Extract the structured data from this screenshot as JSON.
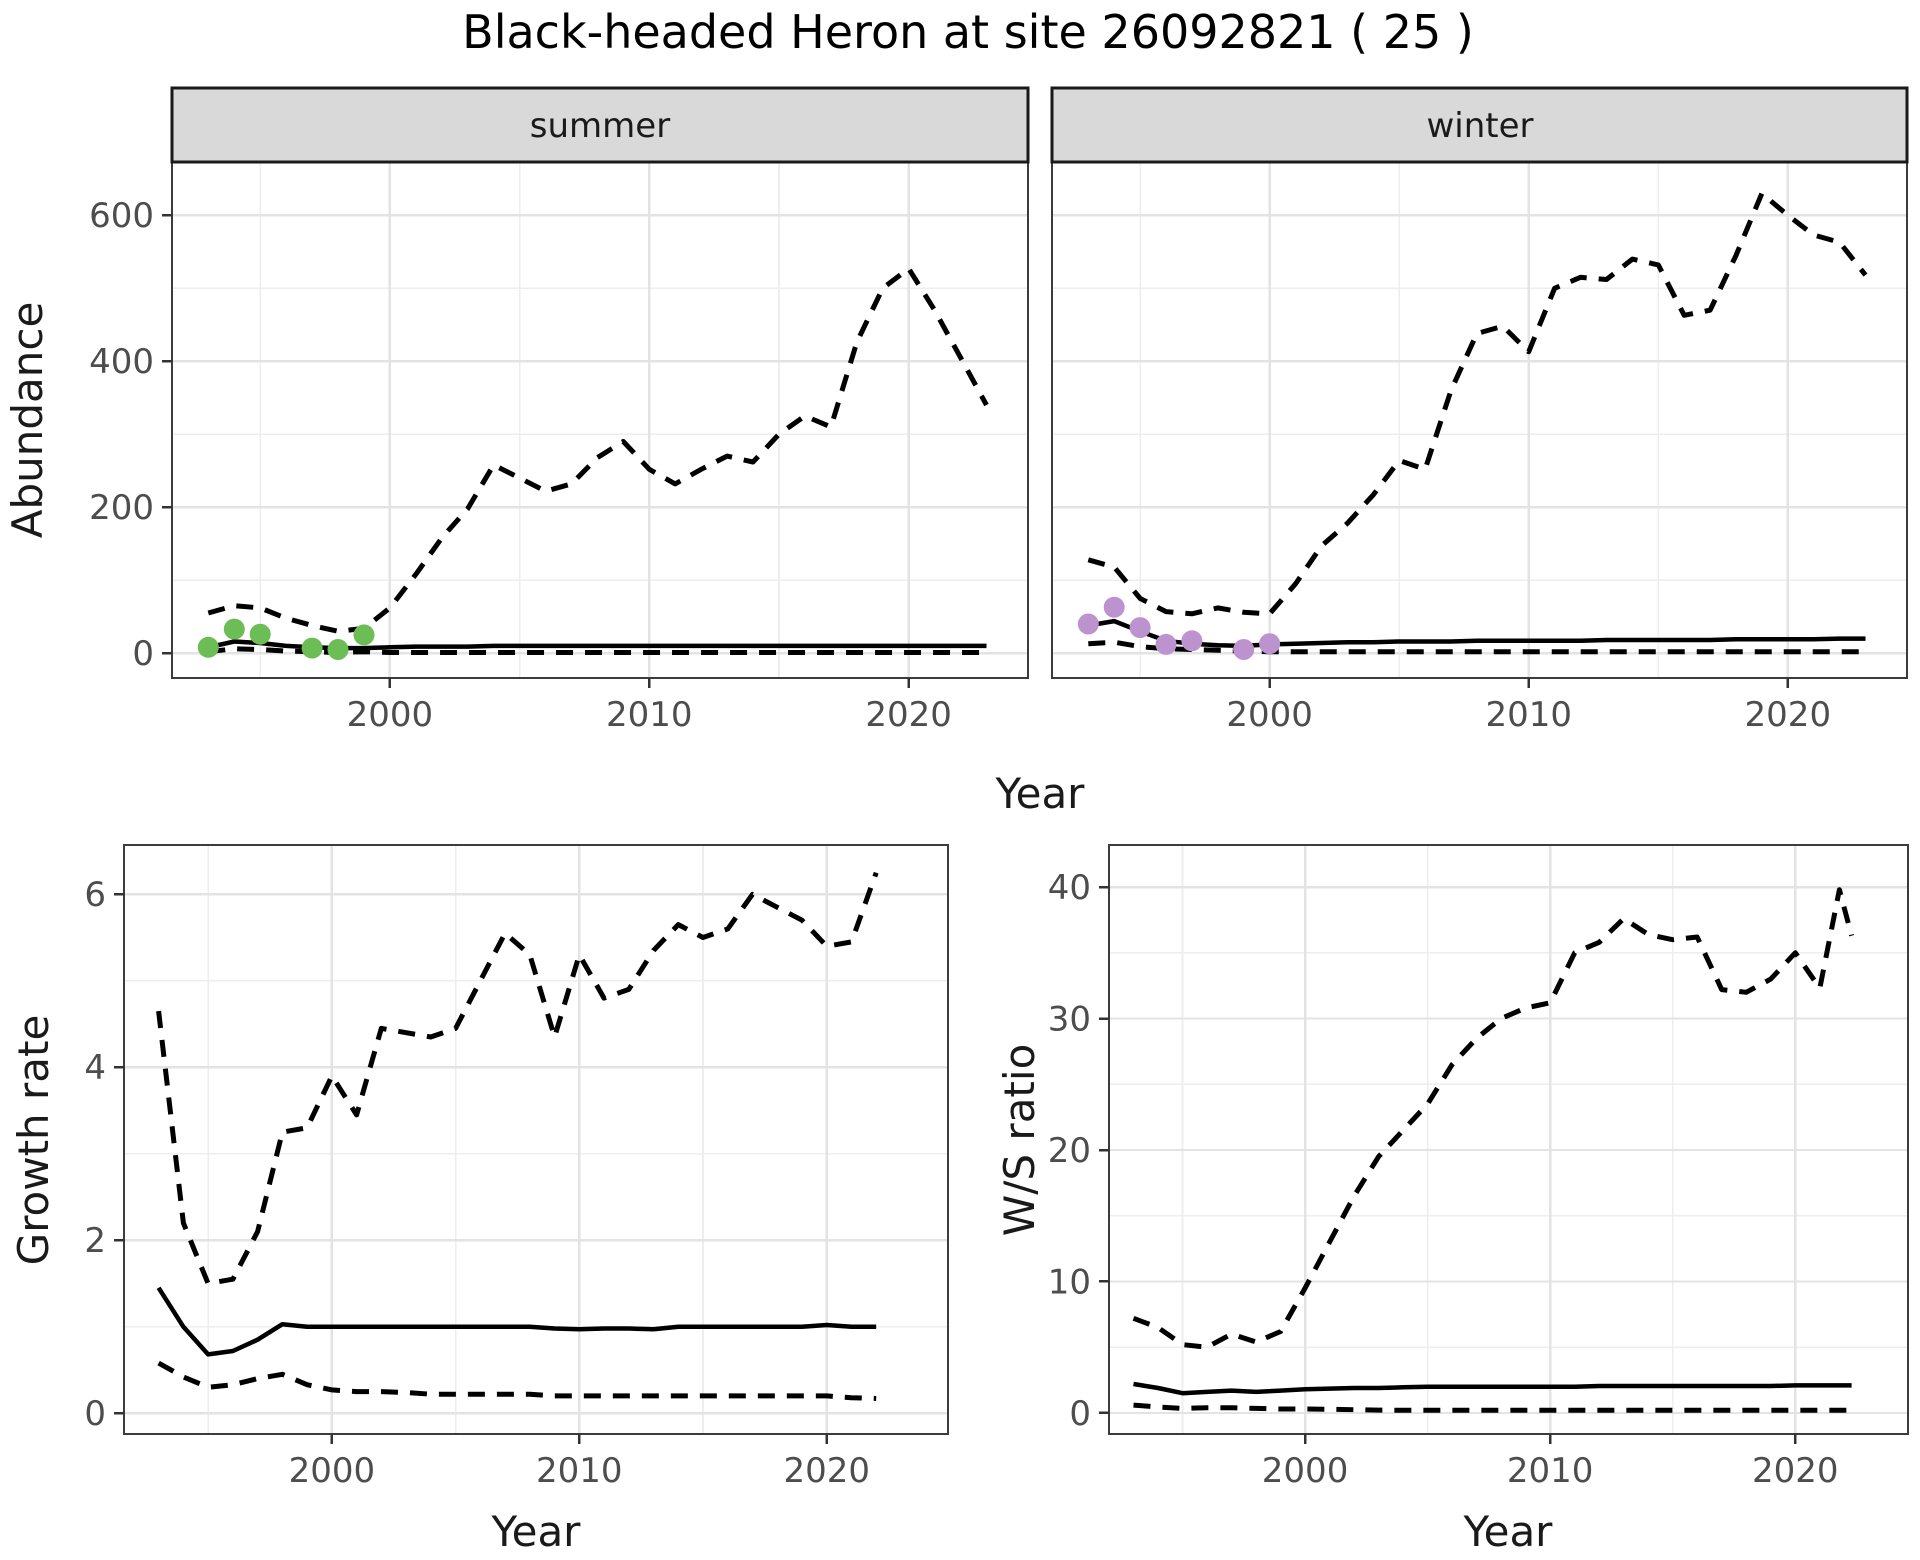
{
  "title": "Black-headed Heron at site 26092821 ( 25 )",
  "colors": {
    "background": "#ffffff",
    "line": "#000000",
    "grid_major": "#e3e3e3",
    "grid_minor": "#eeeeee",
    "strip_bg": "#d9d9d9",
    "strip_border": "#1a1a1a",
    "panel_border": "#3c3c3c",
    "tick_mark": "#333333",
    "tick_label": "#4d4d4d",
    "summer_points": "#6dbd57",
    "winter_points": "#bc93cf"
  },
  "chart_data": [
    {
      "id": "abundance-summer",
      "type": "line",
      "facet": "summer",
      "xlabel": "Year",
      "ylabel": "Abundance",
      "xlim": [
        1991.6,
        2024.6
      ],
      "ylim": [
        -34,
        673
      ],
      "x_breaks": [
        2000,
        2010,
        2020
      ],
      "x_minor": [
        1995,
        2005,
        2015
      ],
      "y_breaks": [
        0,
        200,
        400,
        600
      ],
      "y_minor": [
        100,
        300,
        500
      ],
      "grid": true,
      "legend_position": "none",
      "series": [
        {
          "name": "upper-95ci",
          "style": "dashed",
          "x": [
            1993,
            1994,
            1995,
            1996,
            1997,
            1998,
            1999,
            2000,
            2001,
            2002,
            2003,
            2004,
            2005,
            2006,
            2007,
            2008,
            2009,
            2010,
            2011,
            2012,
            2013,
            2014,
            2015,
            2016,
            2017,
            2018,
            2019,
            2020,
            2021,
            2022,
            2023
          ],
          "y": [
            55,
            65,
            62,
            48,
            38,
            30,
            34,
            62,
            108,
            158,
            198,
            258,
            240,
            222,
            232,
            268,
            290,
            252,
            232,
            252,
            270,
            262,
            300,
            325,
            310,
            426,
            500,
            527,
            470,
            405,
            340
          ]
        },
        {
          "name": "lower-95ci",
          "style": "dashed",
          "x": [
            1993,
            1994,
            1995,
            1996,
            1997,
            1998,
            1999,
            2000,
            2001,
            2002,
            2003,
            2004,
            2005,
            2006,
            2007,
            2008,
            2009,
            2010,
            2011,
            2012,
            2013,
            2014,
            2015,
            2016,
            2017,
            2018,
            2019,
            2020,
            2021,
            2022,
            2023
          ],
          "y": [
            2,
            6,
            5,
            3,
            2,
            1,
            2,
            1,
            1,
            1,
            1,
            1,
            1,
            1,
            1,
            1,
            1,
            1,
            1,
            1,
            1,
            1,
            1,
            1,
            1,
            1,
            1,
            1,
            1,
            1,
            1
          ]
        },
        {
          "name": "fit",
          "style": "solid",
          "x": [
            1993,
            1994,
            1995,
            1996,
            1997,
            1998,
            1999,
            2000,
            2001,
            2002,
            2003,
            2004,
            2005,
            2006,
            2007,
            2008,
            2009,
            2010,
            2011,
            2012,
            2013,
            2014,
            2015,
            2016,
            2017,
            2018,
            2019,
            2020,
            2021,
            2022,
            2023
          ],
          "y": [
            8,
            16,
            14,
            10,
            8,
            7,
            7,
            8,
            9,
            9,
            9,
            10,
            10,
            10,
            10,
            10,
            10,
            10,
            10,
            10,
            10,
            10,
            10,
            10,
            10,
            10,
            10,
            10,
            10,
            10,
            10
          ]
        }
      ],
      "points": {
        "name": "observed-summer",
        "color_key": "summer_points",
        "x": [
          1993,
          1994,
          1995,
          1997,
          1998,
          1999
        ],
        "y": [
          8,
          33,
          26,
          7,
          5,
          25
        ]
      }
    },
    {
      "id": "abundance-winter",
      "type": "line",
      "facet": "winter",
      "xlabel": "Year",
      "ylabel": "Abundance",
      "xlim": [
        1991.6,
        2024.6
      ],
      "ylim": [
        -34,
        673
      ],
      "x_breaks": [
        2000,
        2010,
        2020
      ],
      "x_minor": [
        1995,
        2005,
        2015
      ],
      "y_breaks": [
        0,
        200,
        400,
        600
      ],
      "y_minor": [
        100,
        300,
        500
      ],
      "grid": true,
      "legend_position": "none",
      "series": [
        {
          "name": "upper-95ci",
          "style": "dashed",
          "x": [
            1993,
            1994,
            1995,
            1996,
            1997,
            1998,
            1999,
            2000,
            2001,
            2002,
            2003,
            2004,
            2005,
            2006,
            2007,
            2008,
            2009,
            2010,
            2011,
            2012,
            2013,
            2014,
            2015,
            2016,
            2017,
            2018,
            2019,
            2020,
            2021,
            2022,
            2023
          ],
          "y": [
            128,
            118,
            75,
            57,
            54,
            62,
            56,
            54,
            95,
            147,
            178,
            217,
            264,
            252,
            360,
            438,
            448,
            413,
            500,
            515,
            512,
            540,
            532,
            463,
            470,
            545,
            630,
            600,
            573,
            563,
            518
          ]
        },
        {
          "name": "lower-95ci",
          "style": "dashed",
          "x": [
            1993,
            1994,
            1995,
            1996,
            1997,
            1998,
            1999,
            2000,
            2001,
            2002,
            2003,
            2004,
            2005,
            2006,
            2007,
            2008,
            2009,
            2010,
            2011,
            2012,
            2013,
            2014,
            2015,
            2016,
            2017,
            2018,
            2019,
            2020,
            2021,
            2022,
            2023
          ],
          "y": [
            13,
            15,
            9,
            6,
            5,
            4,
            3,
            2,
            2,
            2,
            2,
            2,
            2,
            2,
            2,
            2,
            2,
            2,
            2,
            2,
            2,
            2,
            2,
            2,
            2,
            2,
            2,
            2,
            2,
            2,
            2
          ]
        },
        {
          "name": "fit",
          "style": "solid",
          "x": [
            1993,
            1994,
            1995,
            1996,
            1997,
            1998,
            1999,
            2000,
            2001,
            2002,
            2003,
            2004,
            2005,
            2006,
            2007,
            2008,
            2009,
            2010,
            2011,
            2012,
            2013,
            2014,
            2015,
            2016,
            2017,
            2018,
            2019,
            2020,
            2021,
            2022,
            2023
          ],
          "y": [
            38,
            44,
            30,
            17,
            13,
            11,
            10,
            12,
            13,
            14,
            15,
            15,
            16,
            16,
            16,
            17,
            17,
            17,
            17,
            17,
            18,
            18,
            18,
            18,
            18,
            19,
            19,
            19,
            19,
            20,
            20
          ]
        }
      ],
      "points": {
        "name": "observed-winter",
        "color_key": "winter_points",
        "x": [
          1993,
          1994,
          1995,
          1996,
          1997,
          1999,
          2000
        ],
        "y": [
          40,
          63,
          35,
          12,
          17,
          5,
          13
        ]
      }
    },
    {
      "id": "growth-rate",
      "type": "line",
      "facet": null,
      "xlabel": "Year",
      "ylabel": "Growth rate",
      "xlim": [
        1991.6,
        2024.9
      ],
      "ylim": [
        -0.24,
        6.57
      ],
      "x_breaks": [
        2000,
        2010,
        2020
      ],
      "x_minor": [
        1995,
        2005,
        2015
      ],
      "y_breaks": [
        0,
        2,
        4,
        6
      ],
      "y_minor": [
        1,
        3,
        5
      ],
      "grid": true,
      "legend_position": "none",
      "series": [
        {
          "name": "upper-95ci",
          "style": "dashed",
          "x": [
            1993,
            1994,
            1995,
            1996,
            1997,
            1998,
            1999,
            2000,
            2001,
            2002,
            2003,
            2004,
            2005,
            2006,
            2007,
            2008,
            2009,
            2010,
            2011,
            2012,
            2013,
            2014,
            2015,
            2016,
            2017,
            2018,
            2019,
            2020,
            2021,
            2022
          ],
          "y": [
            4.65,
            2.2,
            1.5,
            1.55,
            2.1,
            3.25,
            3.3,
            3.9,
            3.45,
            4.45,
            4.4,
            4.35,
            4.45,
            5.0,
            5.55,
            5.3,
            4.35,
            5.3,
            4.8,
            4.9,
            5.35,
            5.65,
            5.5,
            5.6,
            6.0,
            5.85,
            5.7,
            5.4,
            5.45,
            6.25
          ]
        },
        {
          "name": "lower-95ci",
          "style": "dashed",
          "x": [
            1993,
            1994,
            1995,
            1996,
            1997,
            1998,
            1999,
            2000,
            2001,
            2002,
            2003,
            2004,
            2005,
            2006,
            2007,
            2008,
            2009,
            2010,
            2011,
            2012,
            2013,
            2014,
            2015,
            2016,
            2017,
            2018,
            2019,
            2020,
            2021,
            2022
          ],
          "y": [
            0.58,
            0.42,
            0.3,
            0.33,
            0.4,
            0.45,
            0.33,
            0.27,
            0.25,
            0.25,
            0.24,
            0.22,
            0.22,
            0.22,
            0.22,
            0.22,
            0.2,
            0.2,
            0.2,
            0.2,
            0.2,
            0.2,
            0.2,
            0.2,
            0.2,
            0.2,
            0.2,
            0.2,
            0.18,
            0.17
          ]
        },
        {
          "name": "fit",
          "style": "solid",
          "x": [
            1993,
            1994,
            1995,
            1996,
            1997,
            1998,
            1999,
            2000,
            2001,
            2002,
            2003,
            2004,
            2005,
            2006,
            2007,
            2008,
            2009,
            2010,
            2011,
            2012,
            2013,
            2014,
            2015,
            2016,
            2017,
            2018,
            2019,
            2020,
            2021,
            2022
          ],
          "y": [
            1.45,
            1.0,
            0.68,
            0.72,
            0.85,
            1.03,
            1.0,
            1.0,
            1.0,
            1.0,
            1.0,
            1.0,
            1.0,
            1.0,
            1.0,
            1.0,
            0.98,
            0.97,
            0.98,
            0.98,
            0.97,
            1.0,
            1.0,
            1.0,
            1.0,
            1.0,
            1.0,
            1.02,
            1.0,
            1.0
          ]
        }
      ],
      "points": null
    },
    {
      "id": "ws-ratio",
      "type": "line",
      "facet": null,
      "xlabel": "Year",
      "ylabel": "W/S ratio",
      "xlim": [
        1992.0,
        2024.6
      ],
      "ylim": [
        -1.6,
        43.2
      ],
      "x_breaks": [
        2000,
        2010,
        2020
      ],
      "x_minor": [
        1995,
        2005,
        2015
      ],
      "y_breaks": [
        0,
        10,
        20,
        30,
        40
      ],
      "y_minor": [
        5,
        15,
        25,
        35
      ],
      "grid": true,
      "legend_position": "none",
      "series": [
        {
          "name": "upper-95ci",
          "style": "dashed",
          "x": [
            1993,
            1994,
            1995,
            1996,
            1997,
            1998,
            1999,
            2000,
            2001,
            2002,
            2003,
            2004,
            2005,
            2006,
            2007,
            2008,
            2009,
            2010,
            2011,
            2012,
            2013,
            2014,
            2015,
            2016,
            2017,
            2018,
            2019,
            2020,
            2021,
            2021.8,
            2022.3
          ],
          "y": [
            7.2,
            6.5,
            5.2,
            5.0,
            6.0,
            5.4,
            6.2,
            9.5,
            13,
            16.5,
            19.5,
            21.5,
            23.5,
            26.5,
            28.5,
            30,
            30.8,
            31.2,
            35,
            35.8,
            37.6,
            36.4,
            36,
            36.2,
            32.2,
            32,
            33,
            35,
            32.3,
            39.8,
            36.3
          ]
        },
        {
          "name": "lower-95ci",
          "style": "dashed",
          "x": [
            1993,
            1994,
            1995,
            1996,
            1997,
            1998,
            1999,
            2000,
            2001,
            2002,
            2003,
            2004,
            2005,
            2006,
            2007,
            2008,
            2009,
            2010,
            2011,
            2012,
            2013,
            2014,
            2015,
            2016,
            2017,
            2018,
            2019,
            2020,
            2021,
            2021.8,
            2022.3
          ],
          "y": [
            0.6,
            0.45,
            0.35,
            0.4,
            0.4,
            0.35,
            0.3,
            0.3,
            0.28,
            0.25,
            0.22,
            0.2,
            0.2,
            0.2,
            0.2,
            0.2,
            0.2,
            0.2,
            0.2,
            0.2,
            0.2,
            0.2,
            0.2,
            0.2,
            0.2,
            0.2,
            0.2,
            0.2,
            0.2,
            0.2,
            0.2
          ]
        },
        {
          "name": "fit",
          "style": "solid",
          "x": [
            1993,
            1994,
            1995,
            1996,
            1997,
            1998,
            1999,
            2000,
            2001,
            2002,
            2003,
            2004,
            2005,
            2006,
            2007,
            2008,
            2009,
            2010,
            2011,
            2012,
            2013,
            2014,
            2015,
            2016,
            2017,
            2018,
            2019,
            2020,
            2021,
            2021.8,
            2022.3
          ],
          "y": [
            2.2,
            1.9,
            1.5,
            1.6,
            1.7,
            1.6,
            1.7,
            1.8,
            1.85,
            1.9,
            1.9,
            1.95,
            2.0,
            2.0,
            2.0,
            2.0,
            2.0,
            2.0,
            2.0,
            2.05,
            2.05,
            2.05,
            2.05,
            2.05,
            2.05,
            2.05,
            2.05,
            2.1,
            2.1,
            2.1,
            2.1
          ]
        }
      ],
      "points": null
    }
  ]
}
